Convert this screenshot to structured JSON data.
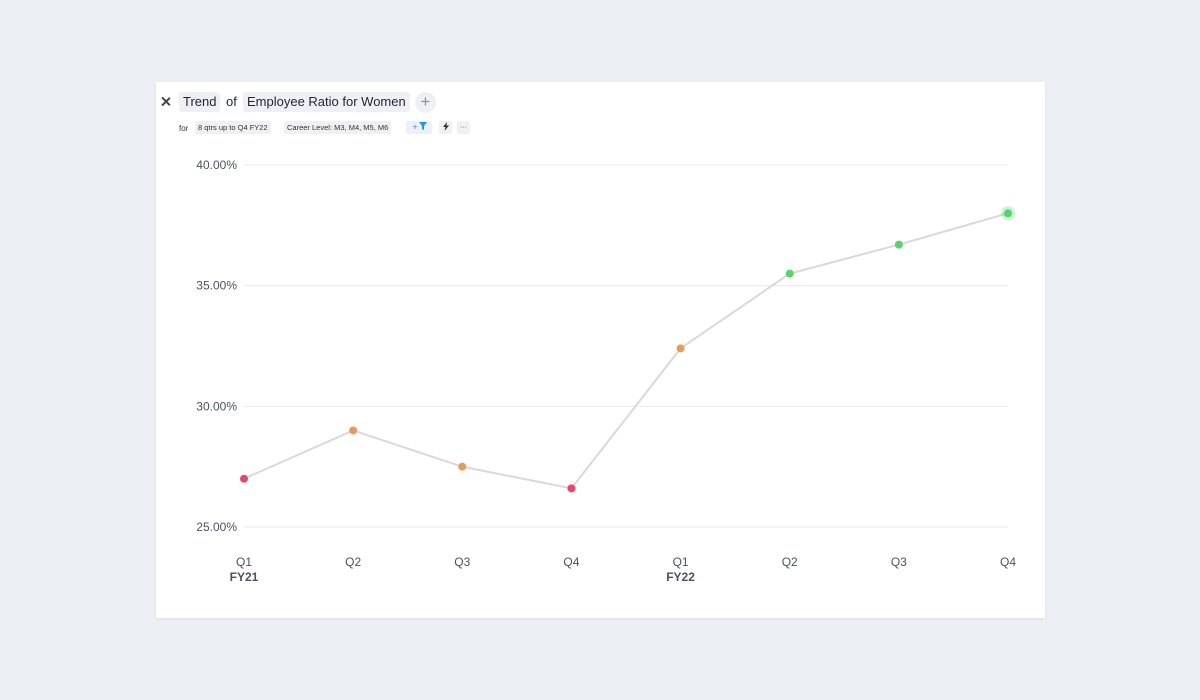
{
  "header": {
    "close_label": "×",
    "metric_type": "Trend",
    "of_label": "of",
    "metric_name": "Employee Ratio for Women",
    "add_label": "+"
  },
  "filters": {
    "for_label": "for",
    "period": "8 qtrs up to Q4 FY22",
    "career_level": "Career Level: M3, M4, M5, M6",
    "add_filter_label": "+",
    "more_label": "···"
  },
  "colors": {
    "low": "#e8466f",
    "mid": "#e99a5a",
    "high": "#55d46e",
    "line": "#d9d9d9",
    "grid": "#e6e8ec"
  },
  "chart_data": {
    "type": "line",
    "title": "",
    "xlabel": "",
    "ylabel": "",
    "categories": [
      "Q1",
      "Q2",
      "Q3",
      "Q4",
      "Q1",
      "Q2",
      "Q3",
      "Q4"
    ],
    "groups": [
      {
        "label": "FY21",
        "start_index": 0
      },
      {
        "label": "FY22",
        "start_index": 4
      }
    ],
    "series": [
      {
        "values": [
          27.0,
          29.0,
          27.5,
          26.6,
          32.4,
          35.5,
          36.7,
          38.0
        ],
        "point_levels": [
          "low",
          "mid",
          "mid",
          "low",
          "mid",
          "high",
          "high",
          "high"
        ]
      }
    ],
    "yticks": [
      "25.00%",
      "30.00%",
      "35.00%",
      "40.00%"
    ],
    "ytick_values": [
      25,
      30,
      35,
      40
    ],
    "ylim": [
      25,
      40
    ],
    "grid": true,
    "highlighted_index": 7
  }
}
